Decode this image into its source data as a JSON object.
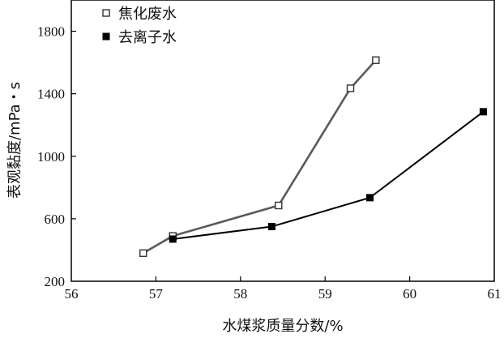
{
  "chart_data": {
    "type": "line",
    "title": "",
    "xlabel": "水煤浆质量分数/%",
    "ylabel": "表观黏度/mPa・s",
    "xlim": [
      56,
      61
    ],
    "ylim": [
      200,
      2000
    ],
    "xticks": [
      56,
      57,
      58,
      59,
      60,
      61
    ],
    "yticks": [
      200,
      600,
      1000,
      1400,
      1800
    ],
    "grid": false,
    "legend_position": "top-left",
    "series": [
      {
        "name": "焦化废水",
        "marker": "open-square",
        "color": "#5a5a5a",
        "x": [
          56.85,
          57.2,
          58.45,
          59.3,
          59.6
        ],
        "y": [
          380,
          490,
          685,
          1435,
          1615
        ]
      },
      {
        "name": "去离子水",
        "marker": "filled-square",
        "color": "#000000",
        "x": [
          57.2,
          58.37,
          59.53,
          60.87
        ],
        "y": [
          470,
          550,
          735,
          1285
        ]
      }
    ]
  }
}
